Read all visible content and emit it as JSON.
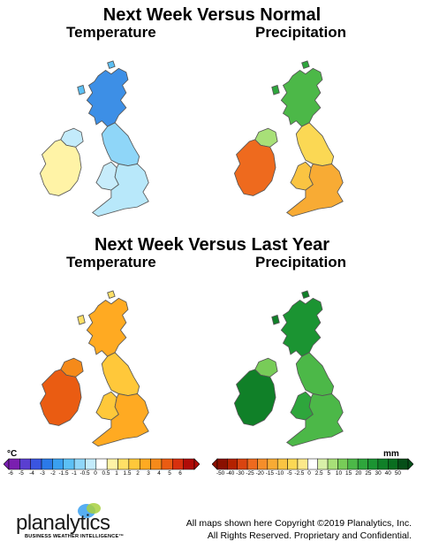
{
  "section1": {
    "title": "Next Week Versus Normal",
    "temp_label": "Temperature",
    "precip_label": "Precipitation"
  },
  "section2": {
    "title": "Next Week Versus Last Year",
    "temp_label": "Temperature",
    "precip_label": "Precipitation"
  },
  "legends": {
    "temperature": {
      "unit": "°C",
      "ticks": [
        "-6",
        "-5",
        "-4",
        "-3",
        "-2",
        "-1.5",
        "-1",
        "-0.5",
        "0",
        "0.5",
        "1",
        "1.5",
        "2",
        "3",
        "4",
        "5",
        "6"
      ],
      "colors": [
        "#7a1fb0",
        "#5a3fd0",
        "#3a55e0",
        "#2b7ae8",
        "#3aa0f0",
        "#5cc0f5",
        "#8fd6f8",
        "#c3ebfb",
        "#ffffff",
        "#fff3a6",
        "#ffe066",
        "#ffc83a",
        "#ffaa22",
        "#f58a1a",
        "#ea5c12",
        "#d8300e",
        "#b00c08"
      ]
    },
    "precipitation": {
      "unit": "mm",
      "ticks": [
        "-50",
        "-40",
        "-30",
        "-25",
        "-20",
        "-15",
        "-10",
        "-5",
        "-2.5",
        "0",
        "2.5",
        "5",
        "10",
        "15",
        "20",
        "25",
        "30",
        "40",
        "50"
      ],
      "colors": [
        "#8a1000",
        "#b42200",
        "#d94410",
        "#ee6a1e",
        "#f58e2a",
        "#f8ab34",
        "#fac442",
        "#fbd854",
        "#fce98a",
        "#ffffff",
        "#d8f0a8",
        "#a8e078",
        "#78cc58",
        "#4cb848",
        "#2ea63c",
        "#1b9432",
        "#108028",
        "#0a6e20",
        "#064f18"
      ]
    }
  },
  "maps": {
    "normal_temperature": {
      "scotland": "#3d8fe6",
      "north_england": "#8fd6f8",
      "south_england": "#b8e8fa",
      "wales": "#c7ecfb",
      "ireland": "#fff3a6",
      "northern_ireland": "#c3ebfb",
      "islands": "#5cc0f5"
    },
    "normal_precipitation": {
      "scotland": "#4cb848",
      "north_england": "#fbd854",
      "south_england": "#f8ab34",
      "wales": "#fac442",
      "ireland": "#ee6a1e",
      "northern_ireland": "#a8e078",
      "islands": "#2ea63c"
    },
    "lastyear_temperature": {
      "scotland": "#ffaa22",
      "north_england": "#ffc83a",
      "south_england": "#ffaa22",
      "wales": "#ffc83a",
      "ireland": "#ea5c12",
      "northern_ireland": "#f58a1a",
      "islands": "#ffe066"
    },
    "lastyear_precipitation": {
      "scotland": "#1b9432",
      "north_england": "#4cb848",
      "south_england": "#4cb848",
      "wales": "#2ea63c",
      "ireland": "#108028",
      "northern_ireland": "#78cc58",
      "islands": "#108028"
    }
  },
  "footer": {
    "brand": "planalytics",
    "tagline": "BUSINESS WEATHER INTELLIGENCE™",
    "copyright_line1": "All maps shown here Copyright ©2019 Planalytics, Inc.",
    "copyright_line2": "All Rights Reserved. Proprietary and Confidential."
  }
}
